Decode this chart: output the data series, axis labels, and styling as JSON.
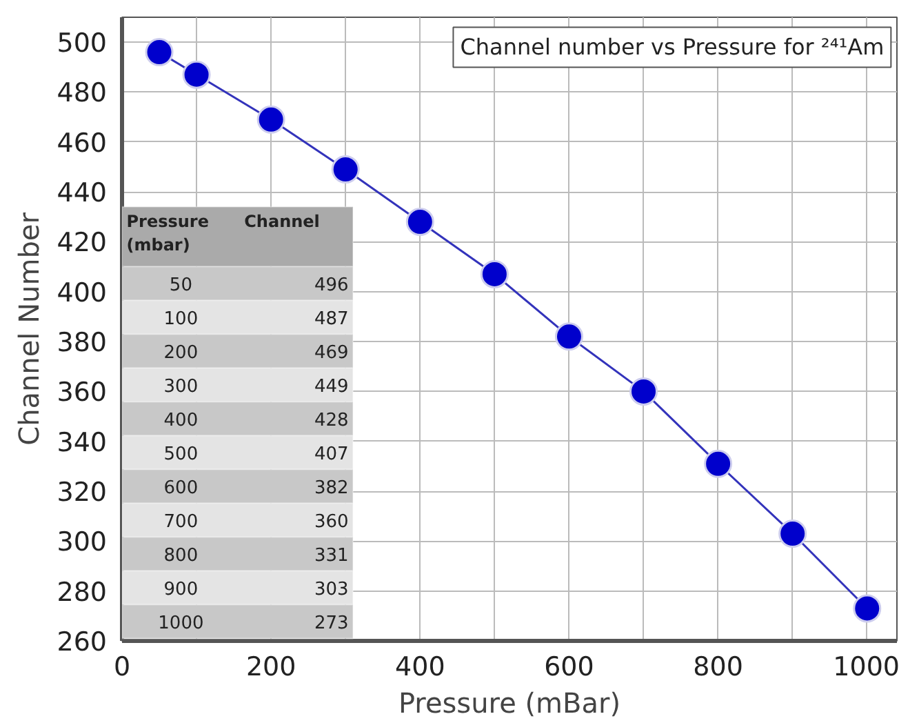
{
  "chart_data": {
    "type": "line",
    "title": "Channel number vs Pressure for ²⁴¹Am",
    "xlabel": "Pressure (mBar)",
    "ylabel": "Channel Number",
    "x": [
      50,
      100,
      200,
      300,
      400,
      500,
      600,
      700,
      800,
      900,
      1000
    ],
    "series": [
      {
        "color": "#0000cc",
        "values": [
          496,
          487,
          469,
          449,
          428,
          407,
          382,
          360,
          331,
          303,
          273
        ]
      }
    ],
    "annotations": [
      "Pressure\n(mbar)",
      "Channel",
      "50",
      "496",
      "100",
      "487",
      "200",
      "469",
      "300",
      "449",
      "400",
      "428",
      "500",
      "407",
      "600",
      "382",
      "700",
      "360",
      "800",
      "331",
      "900",
      "303",
      "1000",
      "273"
    ],
    "xlim": [
      0,
      1040
    ],
    "ylim": [
      260,
      510
    ],
    "xticks": [
      0,
      {
        "value": 100,
        "label": null
      },
      200,
      {
        "value": 300,
        "label": null
      },
      400,
      {
        "value": 500,
        "label": null
      },
      600,
      {
        "value": 700,
        "label": null
      },
      800,
      {
        "value": 900,
        "label": null
      },
      1000
    ],
    "yticks": [
      260,
      280,
      300,
      320,
      340,
      360,
      380,
      400,
      420,
      440,
      460,
      480,
      500
    ],
    "grid": true,
    "marker": "circle",
    "line_style": "solid"
  }
}
